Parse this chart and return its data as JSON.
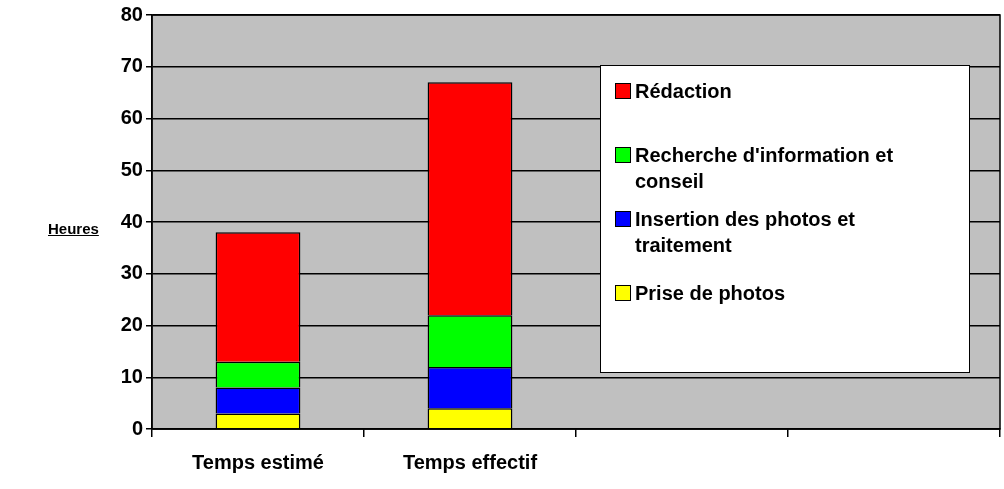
{
  "chart_data": {
    "type": "bar",
    "stacked": true,
    "ylabel": "Heures",
    "categories": [
      "Temps estimé",
      "Temps effectif",
      null,
      null
    ],
    "series": [
      {
        "name": "Prise de photos",
        "color": "#ffff00",
        "values": [
          3,
          4,
          null,
          null
        ]
      },
      {
        "name": "Insertion des photos et traitement",
        "color": "#0000ff",
        "values": [
          5,
          8,
          null,
          null
        ]
      },
      {
        "name": "Recherche d'information et conseil",
        "color": "#00ff00",
        "values": [
          5,
          10,
          null,
          null
        ]
      },
      {
        "name": "Rédaction",
        "color": "#ff0000",
        "values": [
          25,
          45,
          null,
          null
        ]
      }
    ],
    "ylim": [
      0,
      80
    ],
    "yticks": [
      0,
      10,
      20,
      30,
      40,
      50,
      60,
      70,
      80
    ],
    "grid": "y",
    "legend": "right"
  }
}
